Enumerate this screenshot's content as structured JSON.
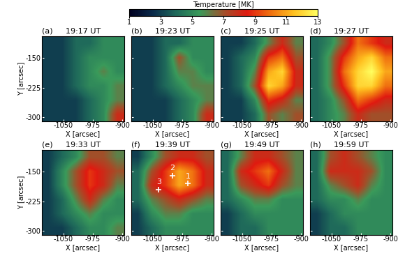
{
  "colorbar": {
    "label": "Temperature [MK]",
    "range": [
      1,
      13
    ],
    "ticks": [
      1,
      3,
      5,
      7,
      9,
      11,
      13
    ]
  },
  "chart_data": [
    {
      "type": "heatmap",
      "panel": "(a)",
      "title": "19:17 UT",
      "ylabel": "Y [arcsec]",
      "xlabel": "X [arcsec]",
      "xlim": [
        -1105,
        -895
      ],
      "ylim": [
        -310,
        -95
      ],
      "xticks": [
        -1050,
        -975,
        -900
      ],
      "yticks": [
        -150,
        -225,
        -300
      ],
      "cells": [
        [
          3,
          3,
          4,
          4,
          5,
          5
        ],
        [
          3,
          3,
          4,
          5,
          5,
          5
        ],
        [
          3,
          3,
          4,
          5,
          6,
          5
        ],
        [
          3,
          3,
          4,
          5,
          5,
          6
        ],
        [
          3,
          3,
          3,
          4,
          5,
          6
        ],
        [
          3,
          3,
          3,
          4,
          5,
          8
        ]
      ]
    },
    {
      "type": "heatmap",
      "panel": "(b)",
      "title": "19:23 UT",
      "xlabel": "X [arcsec]",
      "xlim": [
        -1105,
        -895
      ],
      "ylim": [
        -310,
        -95
      ],
      "xticks": [
        -1050,
        -975,
        -900
      ],
      "yticks": [
        -150,
        -225,
        -300
      ],
      "cells": [
        [
          3,
          3,
          4,
          4,
          5,
          5
        ],
        [
          3,
          3,
          4,
          7,
          5,
          5
        ],
        [
          3,
          3,
          4,
          6,
          6,
          5
        ],
        [
          3,
          3,
          4,
          5,
          6,
          6
        ],
        [
          3,
          3,
          3,
          4,
          5,
          6
        ],
        [
          3,
          3,
          3,
          4,
          5,
          8
        ]
      ]
    },
    {
      "type": "heatmap",
      "panel": "(c)",
      "title": "19:25 UT",
      "xlabel": "X [arcsec]",
      "xlim": [
        -1105,
        -895
      ],
      "ylim": [
        -310,
        -95
      ],
      "xticks": [
        -1050,
        -975,
        -900
      ],
      "yticks": [
        -150,
        -225,
        -300
      ],
      "cells": [
        [
          3,
          3,
          4,
          6,
          8,
          6
        ],
        [
          3,
          4,
          5,
          9,
          10,
          7
        ],
        [
          3,
          4,
          6,
          11,
          12,
          8
        ],
        [
          3,
          4,
          7,
          12,
          11,
          8
        ],
        [
          3,
          3,
          5,
          9,
          8,
          6
        ],
        [
          3,
          3,
          4,
          7,
          6,
          7
        ]
      ]
    },
    {
      "type": "heatmap",
      "panel": "(d)",
      "title": "19:27 UT",
      "xlabel": "X [arcsec]",
      "xlim": [
        -1105,
        -895
      ],
      "ylim": [
        -310,
        -95
      ],
      "xticks": [
        -1050,
        -975,
        -900
      ],
      "yticks": [
        -150,
        -225,
        -300
      ],
      "cells": [
        [
          4,
          5,
          7,
          10,
          9,
          8
        ],
        [
          4,
          6,
          9,
          11,
          12,
          10
        ],
        [
          4,
          6,
          10,
          12,
          13,
          11
        ],
        [
          4,
          6,
          9,
          12,
          12,
          10
        ],
        [
          4,
          5,
          7,
          10,
          9,
          8
        ],
        [
          4,
          5,
          6,
          8,
          7,
          7
        ]
      ]
    },
    {
      "type": "heatmap",
      "panel": "(e)",
      "title": "19:33 UT",
      "ylabel": "Y [arcsec]",
      "xlabel": "X [arcsec]",
      "xlim": [
        -1105,
        -895
      ],
      "ylim": [
        -310,
        -95
      ],
      "xticks": [
        -1050,
        -975,
        -900
      ],
      "yticks": [
        -150,
        -225,
        -300
      ],
      "cells": [
        [
          3,
          4,
          5,
          7,
          7,
          6
        ],
        [
          3,
          5,
          7,
          9,
          8,
          7
        ],
        [
          3,
          5,
          7,
          9,
          8,
          6
        ],
        [
          3,
          4,
          6,
          8,
          6,
          5
        ],
        [
          3,
          4,
          5,
          6,
          5,
          5
        ],
        [
          3,
          3,
          4,
          5,
          5,
          6
        ]
      ]
    },
    {
      "type": "heatmap",
      "panel": "(f)",
      "title": "19:39 UT",
      "xlabel": "X [arcsec]",
      "xlim": [
        -1105,
        -895
      ],
      "ylim": [
        -310,
        -95
      ],
      "xticks": [
        -1050,
        -975,
        -900
      ],
      "yticks": [
        -150,
        -225,
        -300
      ],
      "cells": [
        [
          3,
          5,
          7,
          8,
          8,
          7
        ],
        [
          4,
          7,
          9,
          11,
          10,
          8
        ],
        [
          4,
          8,
          9,
          11,
          10,
          8
        ],
        [
          4,
          6,
          7,
          8,
          7,
          6
        ],
        [
          3,
          5,
          6,
          6,
          5,
          5
        ],
        [
          3,
          4,
          5,
          5,
          5,
          5
        ]
      ],
      "marker": "plus",
      "points": [
        {
          "label": "1",
          "x": -960,
          "y": -180
        },
        {
          "label": "2",
          "x": -1000,
          "y": -160
        },
        {
          "label": "3",
          "x": -1035,
          "y": -195
        }
      ]
    },
    {
      "type": "heatmap",
      "panel": "(g)",
      "title": "19:49 UT",
      "xlabel": "X [arcsec]",
      "xlim": [
        -1105,
        -895
      ],
      "ylim": [
        -310,
        -95
      ],
      "xticks": [
        -1050,
        -975,
        -900
      ],
      "yticks": [
        -150,
        -225,
        -300
      ],
      "cells": [
        [
          4,
          6,
          8,
          8,
          7,
          6
        ],
        [
          4,
          8,
          9,
          10,
          8,
          6
        ],
        [
          4,
          7,
          8,
          9,
          7,
          6
        ],
        [
          4,
          5,
          6,
          6,
          5,
          5
        ],
        [
          3,
          4,
          5,
          5,
          5,
          5
        ],
        [
          3,
          4,
          4,
          5,
          5,
          5
        ]
      ]
    },
    {
      "type": "heatmap",
      "panel": "(h)",
      "title": "19:59 UT",
      "xlabel": "X [arcsec]",
      "xlim": [
        -1105,
        -895
      ],
      "ylim": [
        -310,
        -95
      ],
      "xticks": [
        -1050,
        -975,
        -900
      ],
      "yticks": [
        -150,
        -225,
        -300
      ],
      "cells": [
        [
          4,
          7,
          8,
          7,
          6,
          5
        ],
        [
          4,
          8,
          8,
          8,
          7,
          5
        ],
        [
          4,
          6,
          7,
          8,
          6,
          5
        ],
        [
          4,
          5,
          5,
          6,
          5,
          5
        ],
        [
          3,
          4,
          5,
          5,
          5,
          5
        ],
        [
          3,
          4,
          4,
          5,
          5,
          5
        ]
      ]
    }
  ]
}
